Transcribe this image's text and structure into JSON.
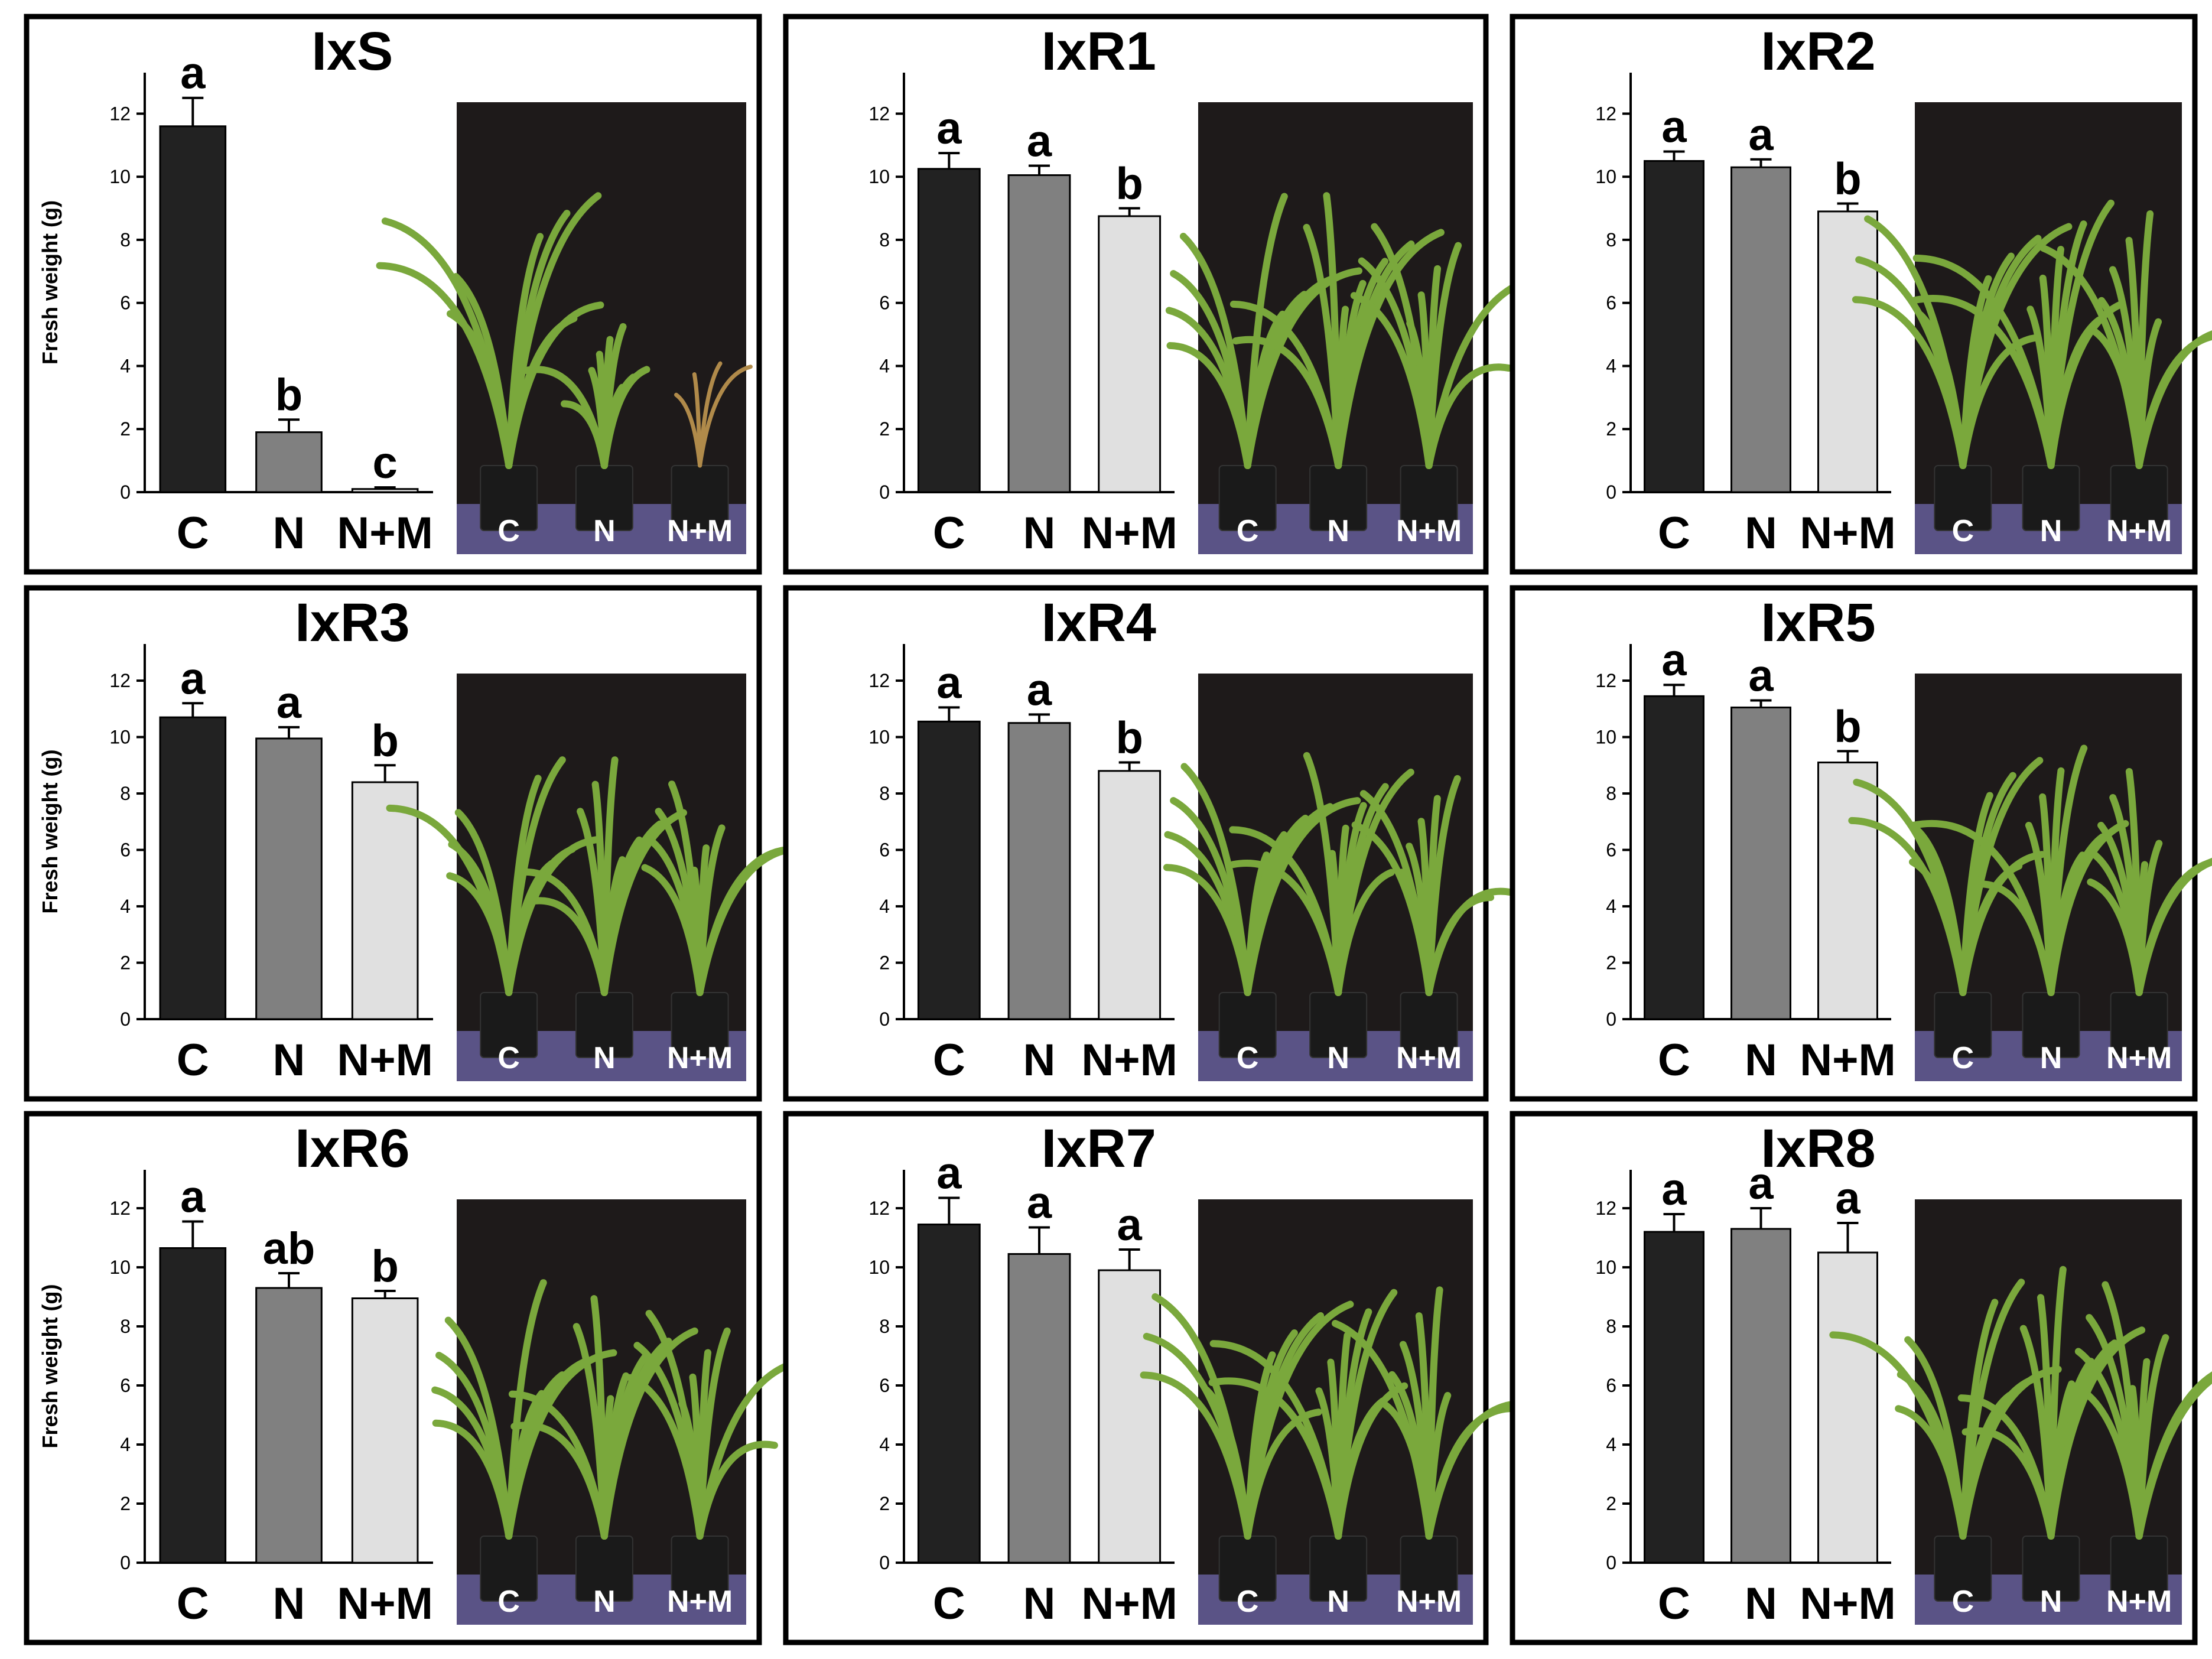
{
  "colors": {
    "C": "#222222",
    "N": "#808080",
    "N+M": "#e0e0e0",
    "photo_background": "#1e1a1a",
    "photo_floor": "#5a5386",
    "leaf_green": "#7aa83c"
  },
  "chart_data": [
    {
      "type": "bar",
      "title": "IxS",
      "ylabel": "Fresh weight (g)",
      "categories": [
        "C",
        "N",
        "N+M"
      ],
      "values": [
        11.6,
        1.9,
        0.1
      ],
      "errors": [
        0.9,
        0.4,
        0.05
      ],
      "significance": [
        "a",
        "b",
        "c"
      ],
      "ylim": [
        0,
        12
      ],
      "yticks": [
        "0",
        "2",
        "4",
        "6",
        "8",
        "10",
        "12"
      ],
      "photo_labels": [
        "C",
        "N",
        "N+M"
      ],
      "legend": "none",
      "grid": false
    },
    {
      "type": "bar",
      "title": "IxR1",
      "ylabel": "",
      "categories": [
        "C",
        "N",
        "N+M"
      ],
      "values": [
        10.25,
        10.05,
        8.75
      ],
      "errors": [
        0.5,
        0.3,
        0.25
      ],
      "significance": [
        "a",
        "a",
        "b"
      ],
      "ylim": [
        0,
        12
      ],
      "yticks": [
        "0",
        "2",
        "4",
        "6",
        "8",
        "10",
        "12"
      ],
      "photo_labels": [
        "C",
        "N",
        "N+M"
      ],
      "legend": "none",
      "grid": false
    },
    {
      "type": "bar",
      "title": "IxR2",
      "ylabel": "",
      "categories": [
        "C",
        "N",
        "N+M"
      ],
      "values": [
        10.5,
        10.3,
        8.9
      ],
      "errors": [
        0.3,
        0.25,
        0.25
      ],
      "significance": [
        "a",
        "a",
        "b"
      ],
      "ylim": [
        0,
        12
      ],
      "yticks": [
        "0",
        "2",
        "4",
        "6",
        "8",
        "10",
        "12"
      ],
      "photo_labels": [
        "C",
        "N",
        "N+M"
      ],
      "legend": "none",
      "grid": false
    },
    {
      "type": "bar",
      "title": "IxR3",
      "ylabel": "Fresh weight (g)",
      "categories": [
        "C",
        "N",
        "N+M"
      ],
      "values": [
        10.7,
        9.95,
        8.4
      ],
      "errors": [
        0.5,
        0.4,
        0.6
      ],
      "significance": [
        "a",
        "a",
        "b"
      ],
      "ylim": [
        0,
        12
      ],
      "yticks": [
        "0",
        "2",
        "4",
        "6",
        "8",
        "10",
        "12"
      ],
      "photo_labels": [
        "C",
        "N",
        "N+M"
      ],
      "legend": "none",
      "grid": false
    },
    {
      "type": "bar",
      "title": "IxR4",
      "ylabel": "",
      "categories": [
        "C",
        "N",
        "N+M"
      ],
      "values": [
        10.55,
        10.5,
        8.8
      ],
      "errors": [
        0.5,
        0.3,
        0.3
      ],
      "significance": [
        "a",
        "a",
        "b"
      ],
      "ylim": [
        0,
        12
      ],
      "yticks": [
        "0",
        "2",
        "4",
        "6",
        "8",
        "10",
        "12"
      ],
      "photo_labels": [
        "C",
        "N",
        "N+M"
      ],
      "legend": "none",
      "grid": false
    },
    {
      "type": "bar",
      "title": "IxR5",
      "ylabel": "",
      "categories": [
        "C",
        "N",
        "N+M"
      ],
      "values": [
        11.45,
        11.05,
        9.1
      ],
      "errors": [
        0.4,
        0.25,
        0.4
      ],
      "significance": [
        "a",
        "a",
        "b"
      ],
      "ylim": [
        0,
        12
      ],
      "yticks": [
        "0",
        "2",
        "4",
        "6",
        "8",
        "10",
        "12"
      ],
      "photo_labels": [
        "C",
        "N",
        "N+M"
      ],
      "legend": "none",
      "grid": false
    },
    {
      "type": "bar",
      "title": "IxR6",
      "ylabel": "Fresh weight (g)",
      "categories": [
        "C",
        "N",
        "N+M"
      ],
      "values": [
        10.65,
        9.3,
        8.95
      ],
      "errors": [
        0.9,
        0.5,
        0.25
      ],
      "significance": [
        "a",
        "ab",
        "b"
      ],
      "ylim": [
        0,
        12
      ],
      "yticks": [
        "0",
        "2",
        "4",
        "6",
        "8",
        "10",
        "12"
      ],
      "photo_labels": [
        "C",
        "N",
        "N+M"
      ],
      "legend": "none",
      "grid": false
    },
    {
      "type": "bar",
      "title": "IxR7",
      "ylabel": "",
      "categories": [
        "C",
        "N",
        "N+M"
      ],
      "values": [
        11.45,
        10.45,
        9.9
      ],
      "errors": [
        0.9,
        0.9,
        0.7
      ],
      "significance": [
        "a",
        "a",
        "a"
      ],
      "ylim": [
        0,
        12
      ],
      "yticks": [
        "0",
        "2",
        "4",
        "6",
        "8",
        "10",
        "12"
      ],
      "photo_labels": [
        "C",
        "N",
        "N+M"
      ],
      "legend": "none",
      "grid": false
    },
    {
      "type": "bar",
      "title": "IxR8",
      "ylabel": "",
      "categories": [
        "C",
        "N",
        "N+M"
      ],
      "values": [
        11.2,
        11.3,
        10.5
      ],
      "errors": [
        0.6,
        0.7,
        1.0
      ],
      "significance": [
        "a",
        "a",
        "a"
      ],
      "ylim": [
        0,
        12
      ],
      "yticks": [
        "0",
        "2",
        "4",
        "6",
        "8",
        "10",
        "12"
      ],
      "photo_labels": [
        "C",
        "N",
        "N+M"
      ],
      "legend": "none",
      "grid": false
    }
  ]
}
